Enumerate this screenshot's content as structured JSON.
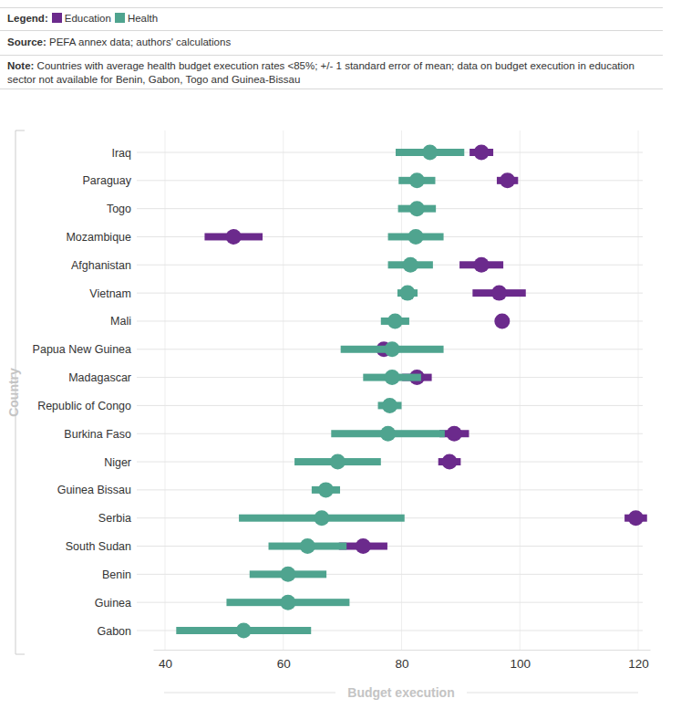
{
  "chart_data": {
    "type": "dot",
    "orientation": "horizontal",
    "legend": "top",
    "grid": true,
    "legend_title": "Legend:",
    "source_label": "Source:",
    "source": "PEFA annex data; authors' calculations",
    "note_label": "Note:",
    "note": "Countries with average health budget execution rates <85%; +/- 1 standard error of mean; data on budget execution in education sector not available for Benin, Gabon, Togo and Guinea-Bissau",
    "x_label": "Budget execution",
    "y_label": "Country",
    "categories": [
      "Iraq",
      "Paraguay",
      "Togo",
      "Mozambique",
      "Afghanistan",
      "Vietnam",
      "Mali",
      "Papua New Guinea",
      "Madagascar",
      "Republic of Congo",
      "Burkina Faso",
      "Niger",
      "Guinea Bissau",
      "Serbia",
      "South Sudan",
      "Benin",
      "Guinea",
      "Gabon"
    ],
    "series": [
      {
        "name": "Education",
        "color": "#6b2a8c",
        "values": [
          93.5,
          97.9,
          null,
          51.6,
          93.5,
          96.5,
          97.0,
          77.0,
          82.6,
          null,
          88.9,
          88.1,
          null,
          119.6,
          73.5,
          null,
          null,
          null
        ],
        "errors": [
          2.0,
          1.8,
          null,
          4.9,
          3.7,
          4.5,
          0.5,
          1.0,
          2.5,
          null,
          2.5,
          1.9,
          null,
          1.9,
          4.1,
          null,
          null,
          null
        ]
      },
      {
        "name": "Health",
        "color": "#4fa48f",
        "values": [
          84.8,
          82.6,
          82.6,
          82.4,
          81.5,
          81.0,
          78.9,
          78.4,
          78.4,
          78.0,
          77.7,
          69.2,
          67.2,
          66.5,
          64.1,
          60.8,
          60.8,
          53.3
        ],
        "errors": [
          5.8,
          3.1,
          3.2,
          4.7,
          3.8,
          1.7,
          2.4,
          8.7,
          4.9,
          2.0,
          9.6,
          7.3,
          2.4,
          14.0,
          6.6,
          6.5,
          10.4,
          11.4
        ]
      }
    ],
    "xlim": [
      38,
      122
    ],
    "xticks": [
      40,
      60,
      80,
      100,
      120
    ]
  }
}
